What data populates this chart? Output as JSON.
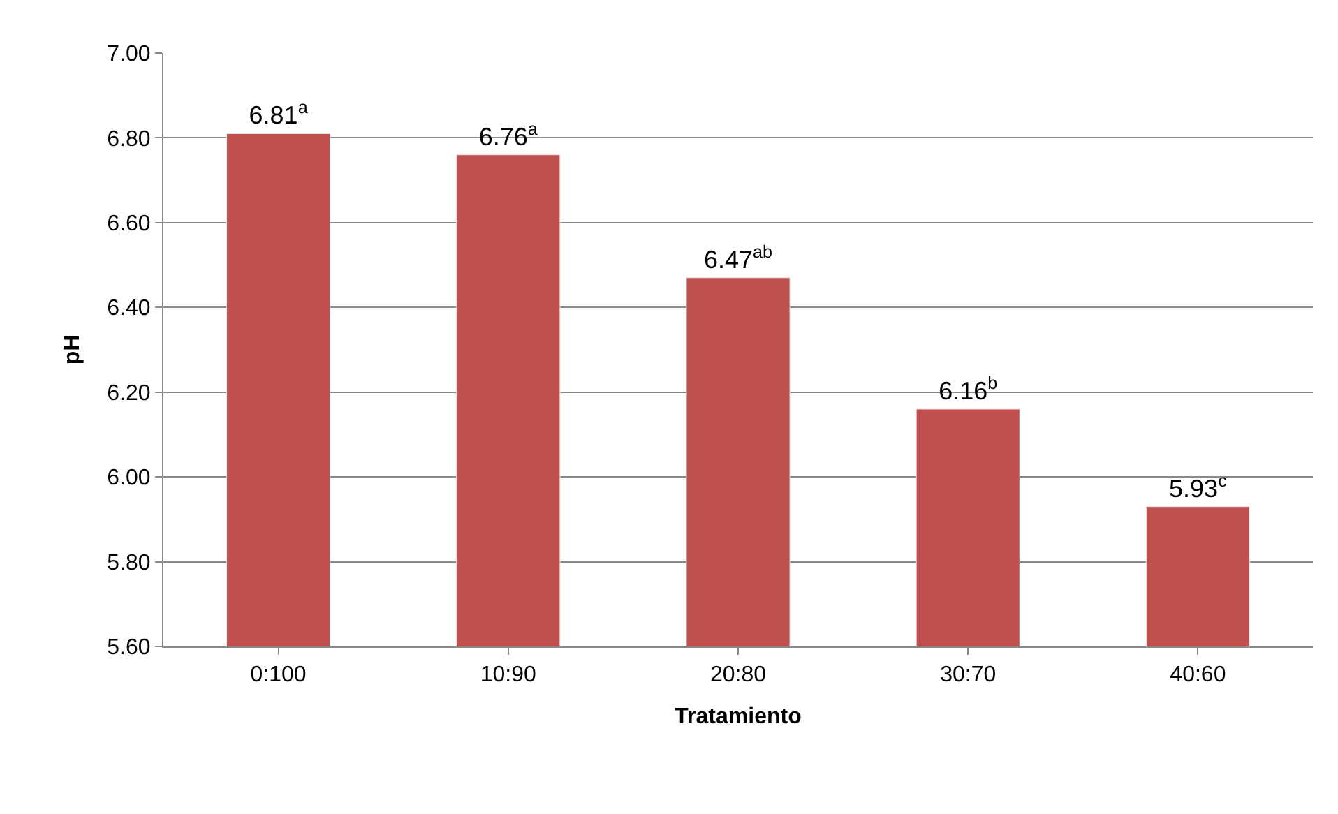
{
  "chart_data": {
    "type": "bar",
    "xlabel": "Tratamiento",
    "ylabel": "pH",
    "categories": [
      "0:100",
      "10:90",
      "20:80",
      "30:70",
      "40:60"
    ],
    "values": [
      6.81,
      6.76,
      6.47,
      6.16,
      5.93
    ],
    "value_labels": [
      "6.81$^{a}$",
      "6.76$^{a}$",
      "6.47$^{ab}$",
      "6.16$^{b}$",
      "5.93$^{c}$"
    ],
    "color": "#c0504d",
    "ylim": [
      5.6,
      7.0
    ],
    "yticks": [
      {
        "value": 5.6,
        "label": "5.60"
      },
      {
        "value": 5.8,
        "label": "5.80"
      },
      {
        "value": 6.0,
        "label": "6.00"
      },
      {
        "value": 6.2,
        "label": "6.20"
      },
      {
        "value": 6.4,
        "label": "6.40"
      },
      {
        "value": 6.6,
        "label": "6.60"
      },
      {
        "value": 6.8,
        "label": "6.80"
      },
      {
        "value": 7.0,
        "label": "7.00"
      }
    ],
    "grid": "y"
  }
}
